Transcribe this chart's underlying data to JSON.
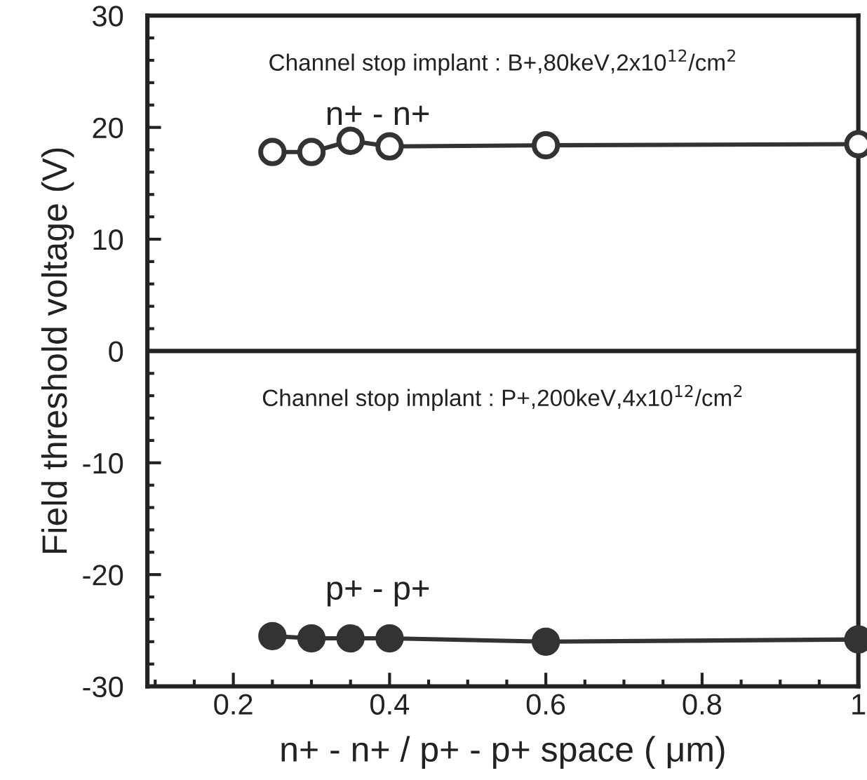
{
  "chart_data": {
    "type": "line",
    "xlabel": "n+ - n+ / p+ - p+ space ( μm)",
    "ylabel": "Field threshold voltage (V)",
    "x": [
      0.25,
      0.3,
      0.35,
      0.4,
      0.6,
      1.0
    ],
    "series": [
      {
        "name": "n+ - n+",
        "color": "#333333",
        "marker": "open circle",
        "values": [
          17.8,
          17.8,
          18.8,
          18.3,
          18.4,
          18.5
        ]
      },
      {
        "name": "p+ - p+",
        "color": "#333333",
        "marker": "circle",
        "values": [
          -25.5,
          -25.7,
          -25.7,
          -25.7,
          -26.0,
          -25.8
        ]
      }
    ],
    "annotations": [
      "Channel stop implant : B+,80keV,2x10$^{12}$/cm$^{2}$",
      "Channel stop implant : P+,200keV,4x10$^{12}$/cm$^{2}$"
    ],
    "ref_lines": [
      {
        "axis": "y",
        "value": 0
      }
    ],
    "xlim": [
      0.09,
      1.0
    ],
    "ylim": [
      -30,
      30
    ],
    "xticks": [
      0.2,
      0.4,
      0.6,
      0.8,
      1
    ],
    "yticks": [
      -30,
      -20,
      -10,
      0,
      10,
      20,
      30
    ],
    "grid": false,
    "legend": false,
    "line_style": "solid"
  }
}
